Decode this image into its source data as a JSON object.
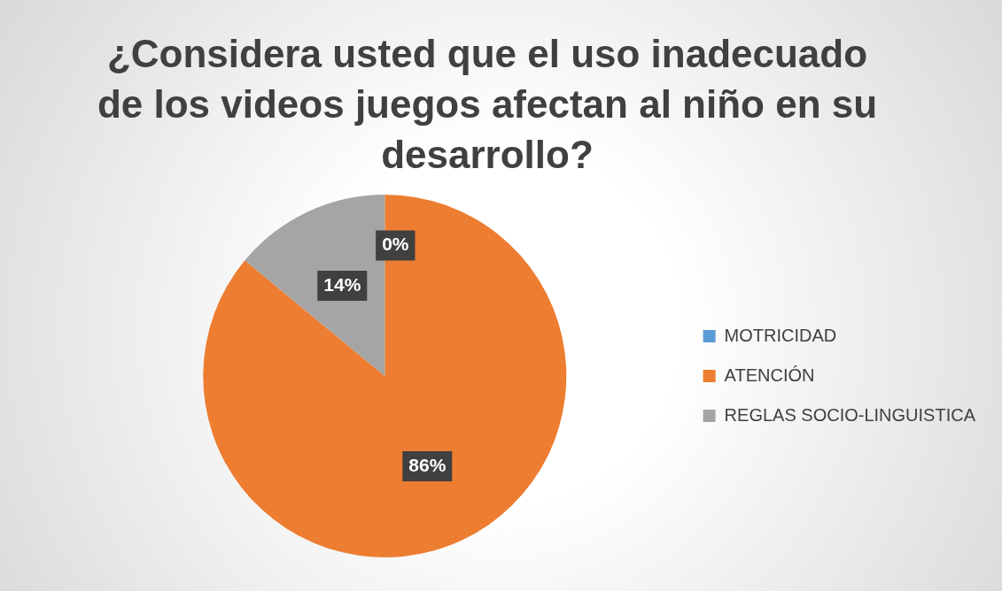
{
  "chart_data": {
    "type": "pie",
    "title": "¿Considera usted que el uso inadecuado de los videos juegos afectan al niño en su desarrollo?",
    "categories": [
      "MOTRICIDAD",
      "ATENCIÓN",
      "REGLAS SOCIO-LINGUISTICA"
    ],
    "values": [
      0,
      86,
      14
    ],
    "colors": [
      "#5b9bd5",
      "#ed7d31",
      "#a5a5a5"
    ],
    "value_labels": [
      "0%",
      "86%",
      "14%"
    ],
    "legend": "right"
  }
}
